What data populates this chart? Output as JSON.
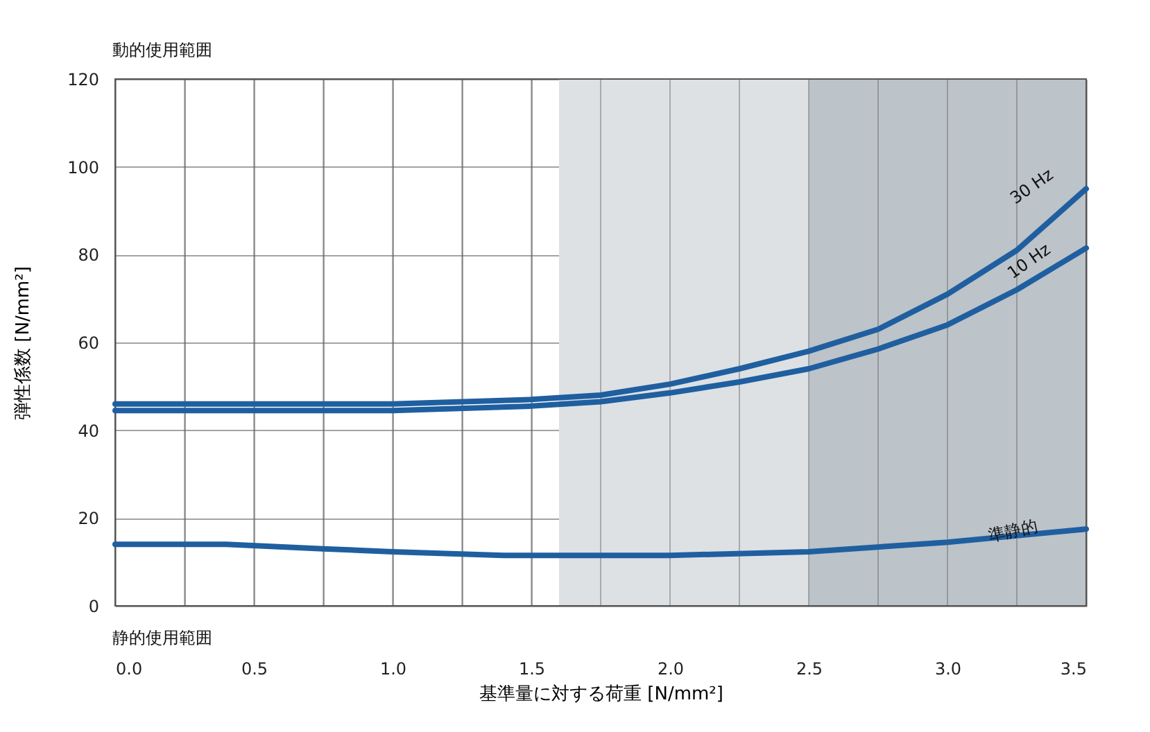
{
  "chart_data": {
    "type": "line",
    "xlabel": "基準量に対する荷重 [N/mm²]",
    "ylabel": "弾性係数 [N/mm²]",
    "xlim": [
      0,
      3.5
    ],
    "ylim": [
      0,
      120
    ],
    "xticks": [
      {
        "value": 0,
        "label": "0.0"
      },
      {
        "value": 0.25,
        "label": null
      },
      0.5,
      {
        "value": 0.75,
        "label": null
      },
      {
        "value": 1,
        "label": "1.0"
      },
      {
        "value": 1.25,
        "label": null
      },
      1.5,
      {
        "value": 1.75,
        "label": null
      },
      {
        "value": 2,
        "label": "2.0"
      },
      {
        "value": 2.25,
        "label": null
      },
      2.5,
      {
        "value": 2.75,
        "label": null
      },
      {
        "value": 3,
        "label": "3.0"
      },
      {
        "value": 3.25,
        "label": null
      },
      3.5
    ],
    "yticks": [
      0,
      20,
      40,
      60,
      80,
      100,
      120
    ],
    "grid": true,
    "series": [
      {
        "name": "30 Hz",
        "color": "#1f5fa0",
        "x": [
          0,
          0.5,
          1.0,
          1.5,
          1.75,
          2.0,
          2.25,
          2.5,
          2.75,
          3.0,
          3.25,
          3.5
        ],
        "values": [
          46,
          46,
          46,
          47,
          48,
          50.5,
          54,
          58,
          63,
          71,
          81,
          95
        ]
      },
      {
        "name": "10 Hz",
        "color": "#1f5fa0",
        "x": [
          0,
          0.5,
          1.0,
          1.5,
          1.75,
          2.0,
          2.25,
          2.5,
          2.75,
          3.0,
          3.25,
          3.5
        ],
        "values": [
          44.5,
          44.5,
          44.5,
          45.5,
          46.5,
          48.5,
          51,
          54,
          58.5,
          64,
          72,
          81.5
        ]
      },
      {
        "name": "準静的",
        "color": "#1f5fa0",
        "x": [
          0,
          0.4,
          0.75,
          1.0,
          1.4,
          2.0,
          2.5,
          3.0,
          3.5
        ],
        "values": [
          14,
          14,
          13,
          12.3,
          11.5,
          11.5,
          12.3,
          14.5,
          17.5
        ]
      }
    ],
    "bands": [
      {
        "axis": "x",
        "from": 1.6,
        "to": 2.5,
        "color": "#dde1e4"
      },
      {
        "axis": "x",
        "from": 2.5,
        "to": 3.5,
        "color": "#bcc3c9"
      }
    ],
    "annotations": [
      "動的使用範囲",
      "静的使用範囲"
    ]
  }
}
